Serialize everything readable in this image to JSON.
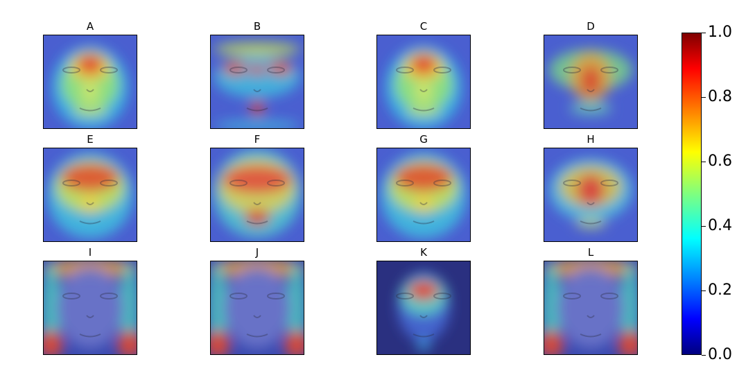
{
  "chart_data": {
    "type": "heatmap",
    "title": "",
    "panels": [
      {
        "label": "A",
        "attention": "eyes-center"
      },
      {
        "label": "B",
        "attention": "forehead-eyes-mouth"
      },
      {
        "label": "C",
        "attention": "eyes-center"
      },
      {
        "label": "D",
        "attention": "nose-center"
      },
      {
        "label": "E",
        "attention": "eyes-broad"
      },
      {
        "label": "F",
        "attention": "eyes-mouth-broad"
      },
      {
        "label": "G",
        "attention": "eyes-broad"
      },
      {
        "label": "H",
        "attention": "nose-broad"
      },
      {
        "label": "I",
        "attention": "border-corners"
      },
      {
        "label": "J",
        "attention": "border-corners"
      },
      {
        "label": "K",
        "attention": "forehead-center"
      },
      {
        "label": "L",
        "attention": "border-corners"
      }
    ],
    "colorbar": {
      "colormap": "jet",
      "range": [
        0.0,
        1.0
      ],
      "ticks": [
        "0.0",
        "0.2",
        "0.4",
        "0.6",
        "0.8",
        "1.0"
      ]
    }
  }
}
